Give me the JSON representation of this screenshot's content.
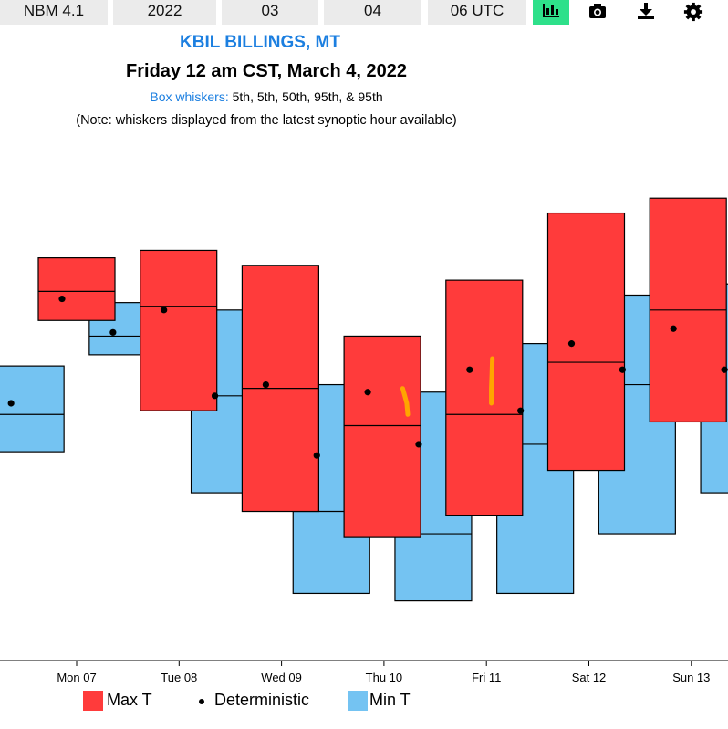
{
  "toolbar": {
    "model": "NBM 4.1",
    "year": "2022",
    "month": "03",
    "day": "04",
    "cycle": "06 UTC",
    "icons": [
      "box-chart-icon",
      "camera-icon",
      "download-icon",
      "gear-icon"
    ],
    "active_color": "#2ee08a"
  },
  "header": {
    "station": "KBIL BILLINGS, MT",
    "datetime": "Friday 12 am CST, March 4, 2022",
    "whiskers_label": "Box whiskers:",
    "whiskers_value": "5th, 5th, 50th, 95th, & 95th",
    "note": "(Note: whiskers displayed from the latest synoptic hour available)"
  },
  "legend": {
    "max_label": "Max T",
    "det_label": "Deterministic",
    "min_label": "Min T"
  },
  "colors": {
    "max": "#ff3b3b",
    "min": "#74c3f2",
    "observed": "#ffa500"
  },
  "chart_data": {
    "type": "box",
    "x_labels": [
      "Mon 07",
      "Tue 08",
      "Wed 09",
      "Thu 10",
      "Fri 11",
      "Sat 12",
      "Sun 13"
    ],
    "series": [
      {
        "name": "Max T",
        "boxes": [
          {
            "day": 0.0,
            "p05": 63.6,
            "p50": 67.5,
            "p95": 72.0,
            "det": 66.5
          },
          {
            "day": 1.0,
            "p05": 51.5,
            "p50": 65.5,
            "p95": 73.0,
            "det": 65.0
          },
          {
            "day": 2.0,
            "p05": 38.0,
            "p50": 54.5,
            "p95": 71.0,
            "det": 55.0
          },
          {
            "day": 3.0,
            "p05": 34.5,
            "p50": 49.5,
            "p95": 61.5,
            "det": 54.0
          },
          {
            "day": 4.0,
            "p05": 37.5,
            "p50": 51.0,
            "p95": 69.0,
            "det": 57.0
          },
          {
            "day": 5.0,
            "p05": 43.5,
            "p50": 58.0,
            "p95": 78.0,
            "det": 60.5
          },
          {
            "day": 6.0,
            "p05": 50.0,
            "p50": 65.0,
            "p95": 80.0,
            "det": 62.5
          }
        ]
      },
      {
        "name": "Min T",
        "boxes": [
          {
            "day": -0.5,
            "p05": 46.0,
            "p50": 51.0,
            "p95": 57.5,
            "det": 52.5
          },
          {
            "day": 0.5,
            "p05": 59.0,
            "p50": 61.5,
            "p95": 66.0,
            "det": 62.0
          },
          {
            "day": 1.5,
            "p05": 40.5,
            "p50": 53.5,
            "p95": 65.0,
            "det": 53.5
          },
          {
            "day": 2.5,
            "p05": 27.0,
            "p50": 38.0,
            "p95": 55.0,
            "det": 45.5
          },
          {
            "day": 3.5,
            "p05": 26.0,
            "p50": 35.0,
            "p95": 54.0,
            "det": 47.0
          },
          {
            "day": 4.5,
            "p05": 27.0,
            "p50": 47.0,
            "p95": 60.5,
            "det": 51.5
          },
          {
            "day": 5.5,
            "p05": 35.0,
            "p50": 55.0,
            "p95": 67.0,
            "det": 57.0
          },
          {
            "day": 6.5,
            "p05": 40.5,
            "p50": 57.0,
            "p95": 68.5,
            "det": 57.0
          }
        ]
      }
    ],
    "observed_traces": [
      {
        "day": 3.0,
        "points": [
          [
            0.2,
            54.5
          ],
          [
            0.22,
            53.5
          ],
          [
            0.24,
            52.5
          ],
          [
            0.25,
            51.0
          ]
        ]
      },
      {
        "day": 4.0,
        "points": [
          [
            0.08,
            58.5
          ],
          [
            0.075,
            56.5
          ],
          [
            0.07,
            54.5
          ],
          [
            0.07,
            52.5
          ]
        ]
      }
    ],
    "ylim": [
      18,
      87
    ],
    "grid": false,
    "legend_position": "bottom"
  }
}
